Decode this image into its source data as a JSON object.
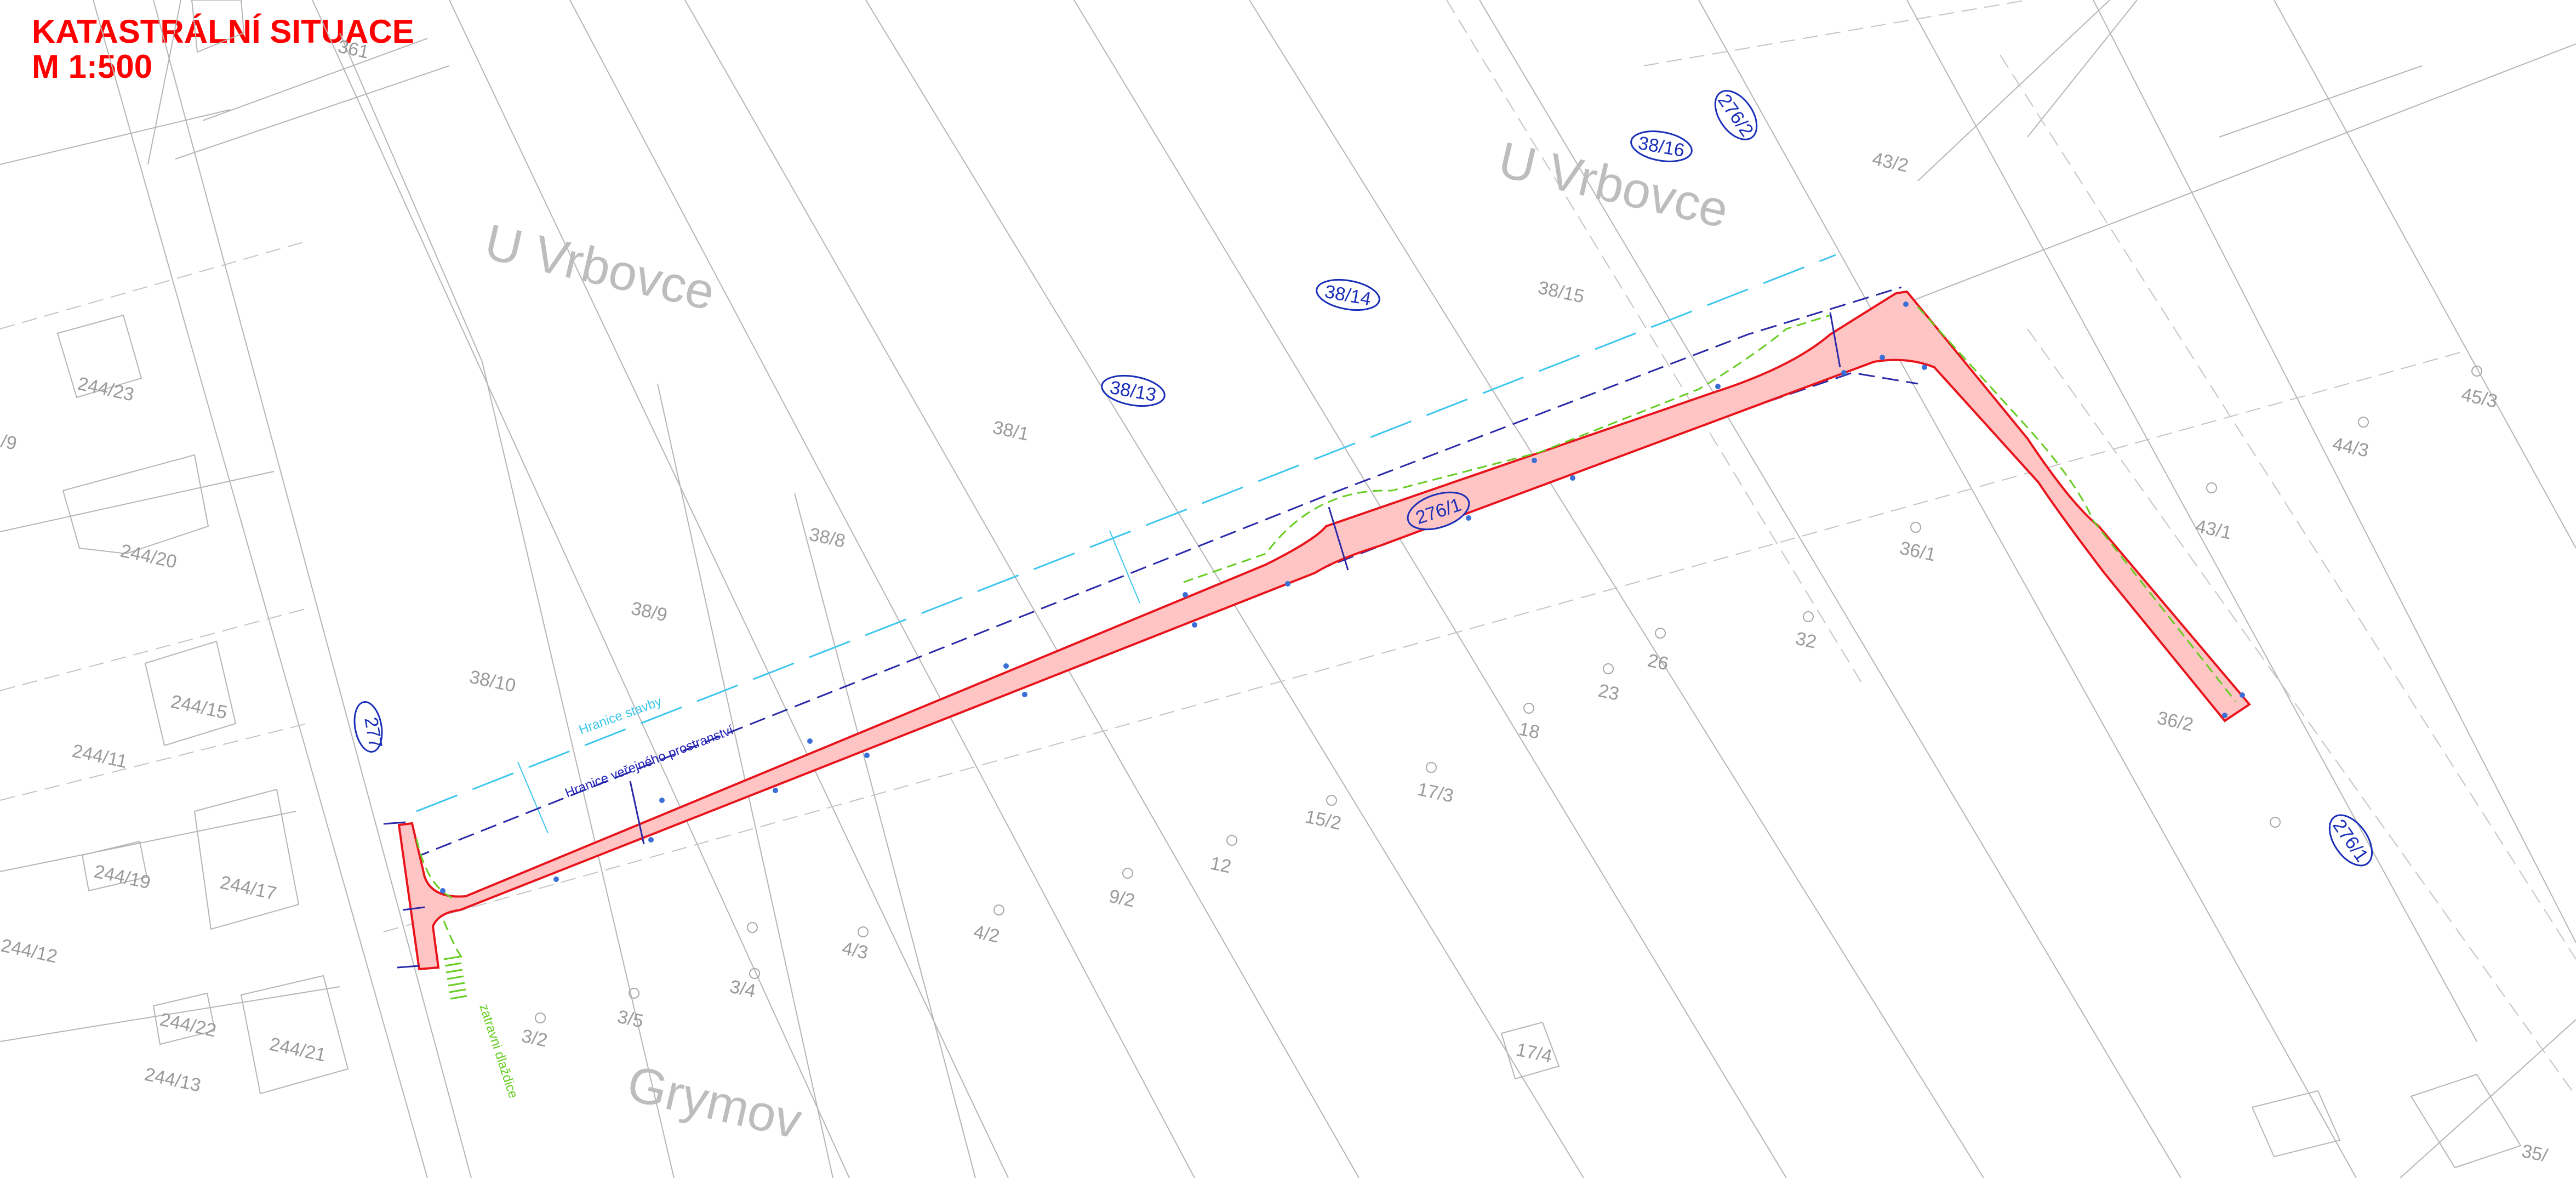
{
  "title": {
    "line1": "KATASTRÁLNÍ SITUACE",
    "line2": "M 1:500"
  },
  "street_names": {
    "u_vrbovce_west": "U Vrbovce",
    "u_vrbovce_east": "U Vrbovce",
    "grymov": "Grymov"
  },
  "circled_parcels": {
    "p277": "277",
    "p38_13": "38/13",
    "p38_14": "38/14",
    "p38_16": "38/16",
    "p276_2": "276/2",
    "p276_1_mid": "276/1",
    "p276_1_east": "276/1"
  },
  "parcels": {
    "p244_23": "244/23",
    "p244_20": "244/20",
    "p244_15": "244/15",
    "p244_11": "244/11",
    "p244_19": "244/19",
    "p244_17": "244/17",
    "p244_12": "244/12",
    "p244_22": "244/22",
    "p244_21": "244/21",
    "p244_13": "244/13",
    "p9": "/9",
    "p38_10": "38/10",
    "p38_9": "38/9",
    "p38_8": "38/8",
    "p38_1": "38/1",
    "p38_15": "38/15",
    "p43_2": "43/2",
    "p36_1": "36/1",
    "p32": "32",
    "p26": "26",
    "p23": "23",
    "p18": "18",
    "p17_3": "17/3",
    "p17_4": "17/4",
    "p15_2": "15/2",
    "p12": "12",
    "p9_2": "9/2",
    "p4_2": "4/2",
    "p4_3": "4/3",
    "p3_4": "3/4",
    "p3_5": "3/5",
    "p3_2": "3/2",
    "p45_3": "45/3",
    "p44_3": "44/3",
    "p43_1": "43/1",
    "p36_2": "36/2",
    "p35": "35/",
    "p361": "361"
  },
  "annotations": {
    "hranice_stavby": "Hranice stavby",
    "hranice_verejneho": "Hranice veřejného prostranství",
    "zatravni_dlazdice": "zatravni dlaždice"
  },
  "colors": {
    "title": "#ff0000",
    "road_fill": "#ffc4c4",
    "road_edge": "#e8141c",
    "public_space_boundary": "#2a2aa8",
    "construction_boundary": "#3ec6ee",
    "green_edge": "#66cc22",
    "parcel_lines": "#b5b5b5",
    "circled_labels": "#1a2fb8"
  }
}
